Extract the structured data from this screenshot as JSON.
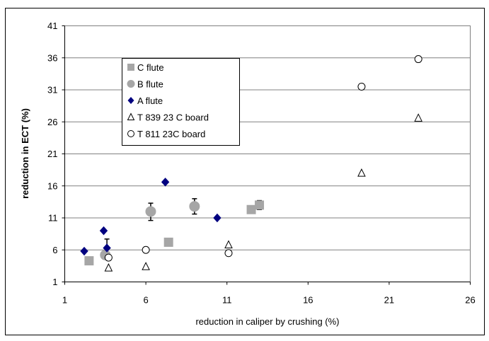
{
  "chart_data": {
    "type": "scatter",
    "title": "",
    "xlabel": "reduction in caliper by crushing (%)",
    "ylabel": "reduction in ECT (%)",
    "xlim": [
      1,
      26
    ],
    "ylim": [
      1,
      41
    ],
    "x_ticks": [
      1,
      6,
      11,
      16,
      21,
      26
    ],
    "y_ticks": [
      1,
      6,
      11,
      16,
      21,
      26,
      31,
      36,
      41
    ],
    "grid": "horizontal",
    "legend": "top-left",
    "series": [
      {
        "name": "C flute",
        "marker": "square",
        "color": "#a6a6a6",
        "points": [
          [
            2.5,
            4.3
          ],
          [
            7.4,
            7.2
          ],
          [
            12.5,
            12.3
          ],
          [
            13.0,
            13.0
          ]
        ],
        "error_bars": [
          [
            13.0,
            12.3,
            13.7
          ]
        ]
      },
      {
        "name": "B flute",
        "marker": "circle",
        "color": "#a6a6a6",
        "points": [
          [
            3.5,
            5.2
          ],
          [
            6.3,
            12.0
          ],
          [
            9.0,
            12.8
          ]
        ],
        "error_bars": [
          [
            6.3,
            10.6,
            13.3
          ],
          [
            9.0,
            11.6,
            14.0
          ]
        ]
      },
      {
        "name": "A flute",
        "marker": "diamond",
        "color": "#000080",
        "points": [
          [
            2.2,
            5.8
          ],
          [
            3.4,
            9.0
          ],
          [
            3.6,
            6.3
          ],
          [
            7.2,
            16.6
          ],
          [
            10.4,
            11.0
          ]
        ],
        "error_bars": [
          [
            3.6,
            6.3,
            7.7
          ]
        ]
      },
      {
        "name": "T 839 23 C board",
        "marker": "triangle-open",
        "color": "#000000",
        "points": [
          [
            3.7,
            3.2
          ],
          [
            6.0,
            3.4
          ],
          [
            11.1,
            6.8
          ],
          [
            19.3,
            18.0
          ],
          [
            22.8,
            26.6
          ]
        ]
      },
      {
        "name": "T 811 23C  board",
        "marker": "circle-open",
        "color": "#000000",
        "points": [
          [
            3.7,
            4.8
          ],
          [
            6.0,
            6.0
          ],
          [
            11.1,
            5.5
          ],
          [
            19.3,
            31.5
          ],
          [
            22.8,
            35.8
          ]
        ]
      }
    ]
  }
}
